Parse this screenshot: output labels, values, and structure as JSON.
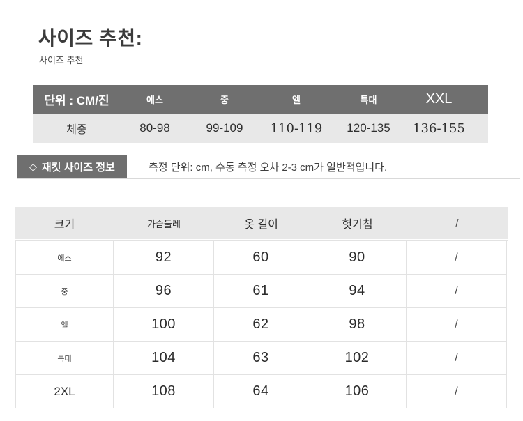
{
  "page": {
    "title": "사이즈 추천:",
    "subtitle": "사이즈 추천"
  },
  "weight_table": {
    "unit_label": "단위 : CM/진",
    "sizes": [
      "에스",
      "중",
      "엘",
      "특대",
      "XXL"
    ],
    "row_label": "체중",
    "values": [
      "80-98",
      "99-109",
      "110-119",
      "120-135",
      "136-155"
    ]
  },
  "section": {
    "icon": "◇",
    "label": "재킷 사이즈 정보",
    "note": "측정 단위: cm, 수동 측정 오차 2-3 cm가 일반적입니다."
  },
  "size_table": {
    "headers": [
      "크기",
      "가슴둘레",
      "옷 길이",
      "헛기침",
      "/"
    ],
    "rows": [
      [
        "에스",
        "92",
        "60",
        "90",
        "/"
      ],
      [
        "중",
        "96",
        "61",
        "94",
        "/"
      ],
      [
        "엘",
        "100",
        "62",
        "98",
        "/"
      ],
      [
        "특대",
        "104",
        "63",
        "102",
        "/"
      ],
      [
        "2XL",
        "108",
        "64",
        "106",
        "/"
      ]
    ]
  },
  "colors": {
    "dark_gray": "#6f6f6f",
    "light_gray": "#e8e8e8",
    "table_border": "#e2e2e2",
    "text": "#303030"
  }
}
